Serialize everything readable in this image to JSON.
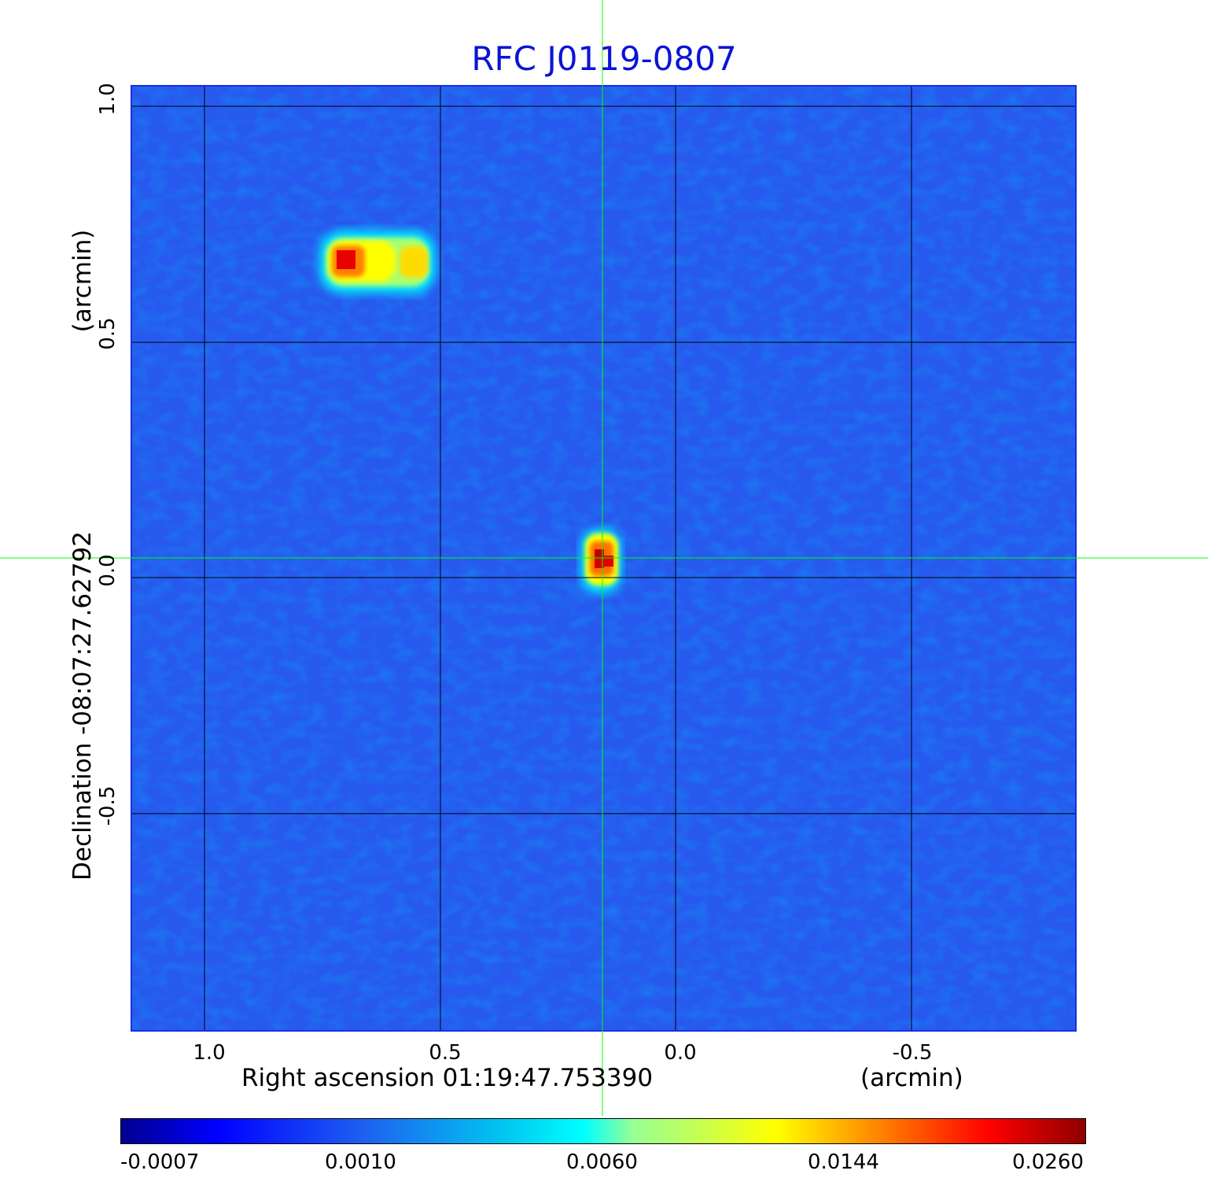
{
  "title": "RFC J0119-0807",
  "x_axis": {
    "label": "Right ascension  01:19:47.753390",
    "unit": "(arcmin)",
    "ticks": [
      "1.0",
      "0.5",
      "0.0",
      "-0.5"
    ]
  },
  "y_axis": {
    "label": "Declination  -08:07:27.62792",
    "unit": "(arcmin)",
    "ticks": [
      "1.0",
      "0.5",
      "0.0",
      "-0.5"
    ]
  },
  "colorbar": {
    "ticks": [
      "-0.0007",
      "0.0010",
      "0.0060",
      "0.0144",
      "0.0260"
    ]
  },
  "colors": {
    "title": "#0a14d6",
    "background_field": "#2a5ef0",
    "crosshair": "#00ff00",
    "grid": "#000000"
  }
}
